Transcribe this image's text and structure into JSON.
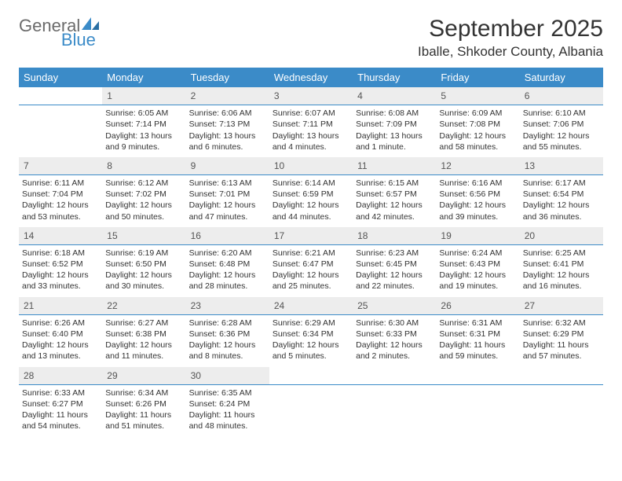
{
  "brand": {
    "name1": "General",
    "name2": "Blue"
  },
  "title": "September 2025",
  "location": "Iballe, Shkoder County, Albania",
  "colors": {
    "header_bg": "#3b8bc8",
    "header_fg": "#ffffff",
    "daynum_bg": "#ededed",
    "divider": "#3b8bc8",
    "text": "#333333",
    "logo_gray": "#6b6b6b",
    "logo_blue": "#3b8bc8"
  },
  "day_headers": [
    "Sunday",
    "Monday",
    "Tuesday",
    "Wednesday",
    "Thursday",
    "Friday",
    "Saturday"
  ],
  "weeks": [
    {
      "nums": [
        "",
        "1",
        "2",
        "3",
        "4",
        "5",
        "6"
      ],
      "cells": [
        null,
        {
          "sunrise": "Sunrise: 6:05 AM",
          "sunset": "Sunset: 7:14 PM",
          "daylight": "Daylight: 13 hours and 9 minutes."
        },
        {
          "sunrise": "Sunrise: 6:06 AM",
          "sunset": "Sunset: 7:13 PM",
          "daylight": "Daylight: 13 hours and 6 minutes."
        },
        {
          "sunrise": "Sunrise: 6:07 AM",
          "sunset": "Sunset: 7:11 PM",
          "daylight": "Daylight: 13 hours and 4 minutes."
        },
        {
          "sunrise": "Sunrise: 6:08 AM",
          "sunset": "Sunset: 7:09 PM",
          "daylight": "Daylight: 13 hours and 1 minute."
        },
        {
          "sunrise": "Sunrise: 6:09 AM",
          "sunset": "Sunset: 7:08 PM",
          "daylight": "Daylight: 12 hours and 58 minutes."
        },
        {
          "sunrise": "Sunrise: 6:10 AM",
          "sunset": "Sunset: 7:06 PM",
          "daylight": "Daylight: 12 hours and 55 minutes."
        }
      ]
    },
    {
      "nums": [
        "7",
        "8",
        "9",
        "10",
        "11",
        "12",
        "13"
      ],
      "cells": [
        {
          "sunrise": "Sunrise: 6:11 AM",
          "sunset": "Sunset: 7:04 PM",
          "daylight": "Daylight: 12 hours and 53 minutes."
        },
        {
          "sunrise": "Sunrise: 6:12 AM",
          "sunset": "Sunset: 7:02 PM",
          "daylight": "Daylight: 12 hours and 50 minutes."
        },
        {
          "sunrise": "Sunrise: 6:13 AM",
          "sunset": "Sunset: 7:01 PM",
          "daylight": "Daylight: 12 hours and 47 minutes."
        },
        {
          "sunrise": "Sunrise: 6:14 AM",
          "sunset": "Sunset: 6:59 PM",
          "daylight": "Daylight: 12 hours and 44 minutes."
        },
        {
          "sunrise": "Sunrise: 6:15 AM",
          "sunset": "Sunset: 6:57 PM",
          "daylight": "Daylight: 12 hours and 42 minutes."
        },
        {
          "sunrise": "Sunrise: 6:16 AM",
          "sunset": "Sunset: 6:56 PM",
          "daylight": "Daylight: 12 hours and 39 minutes."
        },
        {
          "sunrise": "Sunrise: 6:17 AM",
          "sunset": "Sunset: 6:54 PM",
          "daylight": "Daylight: 12 hours and 36 minutes."
        }
      ]
    },
    {
      "nums": [
        "14",
        "15",
        "16",
        "17",
        "18",
        "19",
        "20"
      ],
      "cells": [
        {
          "sunrise": "Sunrise: 6:18 AM",
          "sunset": "Sunset: 6:52 PM",
          "daylight": "Daylight: 12 hours and 33 minutes."
        },
        {
          "sunrise": "Sunrise: 6:19 AM",
          "sunset": "Sunset: 6:50 PM",
          "daylight": "Daylight: 12 hours and 30 minutes."
        },
        {
          "sunrise": "Sunrise: 6:20 AM",
          "sunset": "Sunset: 6:48 PM",
          "daylight": "Daylight: 12 hours and 28 minutes."
        },
        {
          "sunrise": "Sunrise: 6:21 AM",
          "sunset": "Sunset: 6:47 PM",
          "daylight": "Daylight: 12 hours and 25 minutes."
        },
        {
          "sunrise": "Sunrise: 6:23 AM",
          "sunset": "Sunset: 6:45 PM",
          "daylight": "Daylight: 12 hours and 22 minutes."
        },
        {
          "sunrise": "Sunrise: 6:24 AM",
          "sunset": "Sunset: 6:43 PM",
          "daylight": "Daylight: 12 hours and 19 minutes."
        },
        {
          "sunrise": "Sunrise: 6:25 AM",
          "sunset": "Sunset: 6:41 PM",
          "daylight": "Daylight: 12 hours and 16 minutes."
        }
      ]
    },
    {
      "nums": [
        "21",
        "22",
        "23",
        "24",
        "25",
        "26",
        "27"
      ],
      "cells": [
        {
          "sunrise": "Sunrise: 6:26 AM",
          "sunset": "Sunset: 6:40 PM",
          "daylight": "Daylight: 12 hours and 13 minutes."
        },
        {
          "sunrise": "Sunrise: 6:27 AM",
          "sunset": "Sunset: 6:38 PM",
          "daylight": "Daylight: 12 hours and 11 minutes."
        },
        {
          "sunrise": "Sunrise: 6:28 AM",
          "sunset": "Sunset: 6:36 PM",
          "daylight": "Daylight: 12 hours and 8 minutes."
        },
        {
          "sunrise": "Sunrise: 6:29 AM",
          "sunset": "Sunset: 6:34 PM",
          "daylight": "Daylight: 12 hours and 5 minutes."
        },
        {
          "sunrise": "Sunrise: 6:30 AM",
          "sunset": "Sunset: 6:33 PM",
          "daylight": "Daylight: 12 hours and 2 minutes."
        },
        {
          "sunrise": "Sunrise: 6:31 AM",
          "sunset": "Sunset: 6:31 PM",
          "daylight": "Daylight: 11 hours and 59 minutes."
        },
        {
          "sunrise": "Sunrise: 6:32 AM",
          "sunset": "Sunset: 6:29 PM",
          "daylight": "Daylight: 11 hours and 57 minutes."
        }
      ]
    },
    {
      "nums": [
        "28",
        "29",
        "30",
        "",
        "",
        "",
        ""
      ],
      "cells": [
        {
          "sunrise": "Sunrise: 6:33 AM",
          "sunset": "Sunset: 6:27 PM",
          "daylight": "Daylight: 11 hours and 54 minutes."
        },
        {
          "sunrise": "Sunrise: 6:34 AM",
          "sunset": "Sunset: 6:26 PM",
          "daylight": "Daylight: 11 hours and 51 minutes."
        },
        {
          "sunrise": "Sunrise: 6:35 AM",
          "sunset": "Sunset: 6:24 PM",
          "daylight": "Daylight: 11 hours and 48 minutes."
        },
        null,
        null,
        null,
        null
      ]
    }
  ]
}
